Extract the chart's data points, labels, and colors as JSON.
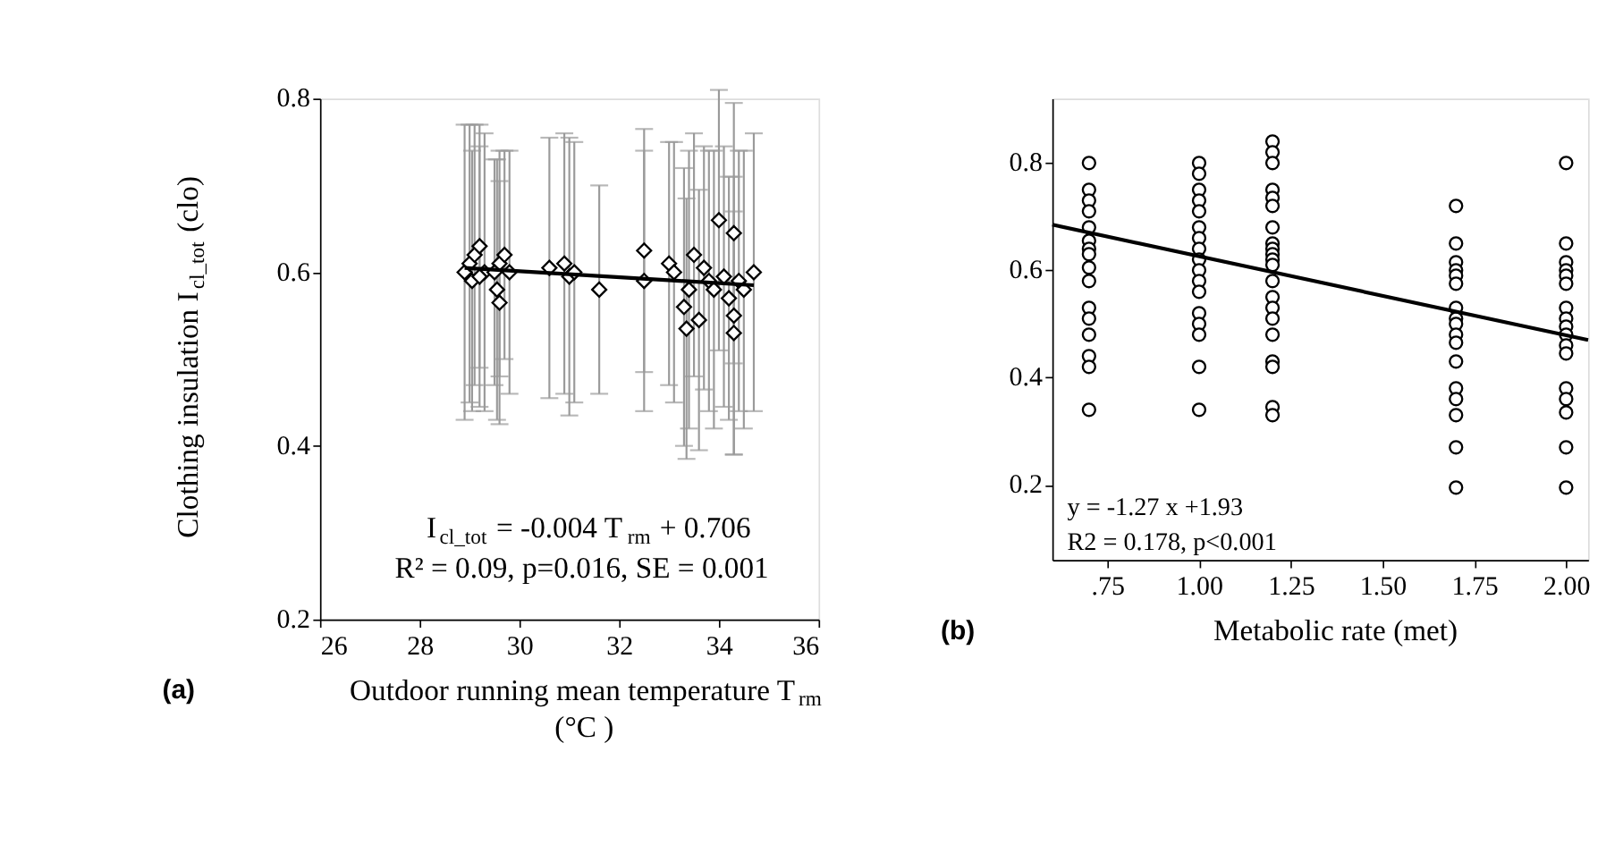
{
  "chart_data": [
    {
      "type": "scatter",
      "title": "(a)",
      "xlabel": "Outdoor running mean temperature T$_{rm}$ (°C )",
      "ylabel": "Clothing insulation I$_{cl_tot}$ (clo)",
      "xlim": [
        26,
        36
      ],
      "xticks": [
        26,
        28,
        30,
        32,
        34,
        36
      ],
      "ylim": [
        0.2,
        0.8
      ],
      "yticks": [
        0.2,
        0.4,
        0.6,
        0.8
      ],
      "grid": false,
      "series": [
        {
          "type": "scatter",
          "color": "#000000",
          "marker": "diamond",
          "x": [
            28.9,
            29.0,
            29.05,
            29.1,
            29.2,
            29.3,
            29.2,
            29.6,
            29.7,
            29.55,
            29.6,
            29.5,
            29.8,
            30.6,
            30.9,
            31.0,
            31.1,
            31.6,
            32.5,
            32.5,
            33.0,
            33.1,
            33.3,
            33.35,
            33.4,
            33.5,
            33.6,
            33.7,
            33.8,
            33.9,
            34.0,
            34.1,
            34.2,
            34.3,
            34.3,
            34.3,
            34.4,
            34.5,
            34.7
          ],
          "values": [
            0.6,
            0.61,
            0.59,
            0.62,
            0.63,
            0.6,
            0.595,
            0.61,
            0.62,
            0.58,
            0.565,
            0.6,
            0.6,
            0.605,
            0.61,
            0.595,
            0.6,
            0.58,
            0.625,
            0.59,
            0.61,
            0.6,
            0.56,
            0.535,
            0.58,
            0.62,
            0.545,
            0.605,
            0.59,
            0.58,
            0.66,
            0.595,
            0.57,
            0.645,
            0.55,
            0.53,
            0.59,
            0.58,
            0.6
          ],
          "errors": [
            0.17,
            0.16,
            0.15,
            0.15,
            0.14,
            0.16,
            0.15,
            0.13,
            0.12,
            0.15,
            0.14,
            0.13,
            0.14,
            0.15,
            0.15,
            0.16,
            0.15,
            0.12,
            0.14,
            0.15,
            0.14,
            0.15,
            0.16,
            0.15,
            0.16,
            0.14,
            0.15,
            0.14,
            0.15,
            0.16,
            0.15,
            0.15,
            0.14,
            0.15,
            0.16,
            0.14,
            0.15,
            0.16,
            0.16
          ]
        },
        {
          "type": "line",
          "color": "#000000",
          "marker": "none",
          "x": [
            28.9,
            34.7
          ],
          "values": [
            0.605,
            0.585
          ]
        }
      ],
      "annotations": [
        "I$_{cl_tot}$ = -0.004 T$_{rm}$ + 0.706",
        "R² = 0.09, p=0.016, SE = 0.001"
      ]
    },
    {
      "type": "scatter",
      "title": "(b)",
      "xlabel": "Metabolic rate (met)",
      "xlim": [
        0.6,
        2.06
      ],
      "xticks": [
        {
          "value": 0.75,
          "label": ".75"
        },
        {
          "value": 1.0,
          "label": "1.00"
        },
        {
          "value": 1.25,
          "label": "1.25"
        },
        {
          "value": 1.5,
          "label": "1.50"
        },
        {
          "value": 1.75,
          "label": "1.75"
        },
        {
          "value": 2.0,
          "label": "2.00"
        }
      ],
      "ylim": [
        0.06,
        0.92
      ],
      "yticks": [
        0.2,
        0.4,
        0.6,
        0.8
      ],
      "grid": false,
      "series": [
        {
          "type": "scatter",
          "color": "#000000",
          "marker": "circle",
          "x": [
            0.7,
            0.7,
            0.7,
            0.7,
            0.7,
            0.7,
            0.7,
            0.7,
            0.7,
            0.7,
            0.7,
            0.7,
            0.7,
            0.7,
            0.7,
            0.7,
            1.0,
            1.0,
            1.0,
            1.0,
            1.0,
            1.0,
            1.0,
            1.0,
            1.0,
            1.0,
            1.0,
            1.0,
            1.0,
            1.0,
            1.0,
            1.0,
            1.0,
            1.2,
            1.2,
            1.2,
            1.2,
            1.2,
            1.2,
            1.2,
            1.2,
            1.2,
            1.2,
            1.2,
            1.2,
            1.2,
            1.2,
            1.2,
            1.2,
            1.2,
            1.2,
            1.2,
            1.2,
            1.2,
            1.7,
            1.7,
            1.7,
            1.7,
            1.7,
            1.7,
            1.7,
            1.7,
            1.7,
            1.7,
            1.7,
            1.7,
            1.7,
            1.7,
            1.7,
            1.7,
            1.7,
            2.0,
            2.0,
            2.0,
            2.0,
            2.0,
            2.0,
            2.0,
            2.0,
            2.0,
            2.0,
            2.0,
            2.0,
            2.0,
            2.0,
            2.0,
            2.0,
            2.0
          ],
          "values": [
            0.8,
            0.75,
            0.73,
            0.71,
            0.68,
            0.655,
            0.64,
            0.63,
            0.605,
            0.58,
            0.53,
            0.51,
            0.48,
            0.44,
            0.42,
            0.34,
            0.8,
            0.78,
            0.75,
            0.73,
            0.71,
            0.68,
            0.66,
            0.64,
            0.62,
            0.6,
            0.58,
            0.56,
            0.52,
            0.5,
            0.48,
            0.42,
            0.34,
            0.84,
            0.82,
            0.8,
            0.75,
            0.735,
            0.72,
            0.68,
            0.65,
            0.64,
            0.63,
            0.62,
            0.61,
            0.58,
            0.55,
            0.53,
            0.51,
            0.48,
            0.43,
            0.42,
            0.345,
            0.33,
            0.72,
            0.65,
            0.615,
            0.6,
            0.59,
            0.575,
            0.53,
            0.51,
            0.5,
            0.48,
            0.465,
            0.43,
            0.38,
            0.36,
            0.33,
            0.27,
            0.195,
            0.8,
            0.65,
            0.615,
            0.6,
            0.59,
            0.575,
            0.53,
            0.51,
            0.495,
            0.48,
            0.46,
            0.445,
            0.38,
            0.36,
            0.335,
            0.27,
            0.195
          ]
        },
        {
          "type": "line",
          "color": "#000000",
          "marker": "none",
          "x": [
            0.6,
            2.06
          ],
          "values": [
            0.685,
            0.47
          ]
        }
      ],
      "annotations": [
        "y = -1.27 x +1.93",
        "R2 = 0.178, p<0.001"
      ]
    }
  ]
}
